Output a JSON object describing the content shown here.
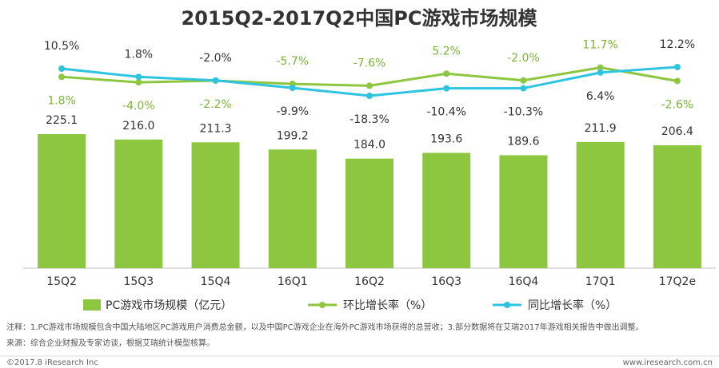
{
  "chart_data": {
    "type": "bar-line",
    "title": "2015Q2-2017Q2中国PC游戏市场规模",
    "categories": [
      "15Q2",
      "15Q3",
      "15Q4",
      "16Q1",
      "16Q2",
      "16Q3",
      "16Q4",
      "17Q1",
      "17Q2e"
    ],
    "series": [
      {
        "name": "PC游戏市场规模（亿元）",
        "type": "bar",
        "color": "#8dc63f",
        "values": [
          225.1,
          216.0,
          211.3,
          199.2,
          184.0,
          193.6,
          189.6,
          211.9,
          206.4
        ],
        "value_labels": [
          "225.1",
          "216.0",
          "211.3",
          "199.2",
          "184.0",
          "193.6",
          "189.6",
          "211.9",
          "206.4"
        ]
      },
      {
        "name": "环比增长率（%）",
        "type": "line",
        "color": "#8dc63f",
        "label_color": "#7ab535",
        "values": [
          1.8,
          -4.0,
          -2.2,
          -5.7,
          -7.6,
          5.2,
          -2.0,
          11.7,
          -2.6
        ],
        "value_labels": [
          "1.8%",
          "-4.0%",
          "-2.2%",
          "-5.7%",
          "-7.6%",
          "5.2%",
          "-2.0%",
          "11.7%",
          "-2.6%"
        ]
      },
      {
        "name": "同比增长率（%）",
        "type": "line",
        "color": "#2ec4e0",
        "label_color": "#333333",
        "values": [
          10.5,
          1.8,
          -2.0,
          -9.9,
          -18.3,
          -10.4,
          -10.3,
          6.4,
          12.2
        ],
        "value_labels": [
          "10.5%",
          "1.8%",
          "-2.0%",
          "-9.9%",
          "-18.3%",
          "-10.4%",
          "-10.3%",
          "6.4%",
          "12.2%"
        ]
      }
    ]
  },
  "notes": [
    "注释：1.PC游戏市场规模包含中国大陆地区PC游戏用户消费总金额，以及中国PC游戏企业在海外PC游戏市场获得的总营收；3.部分数据将在艾瑞2017年游戏相关报告中做出调整。",
    "来源：综合企业财报及专家访谈，根据艾瑞统计模型核算。"
  ],
  "footer": {
    "copyright": "©2017.8 iResearch Inc",
    "site": "www.iresearch.com.cn"
  }
}
